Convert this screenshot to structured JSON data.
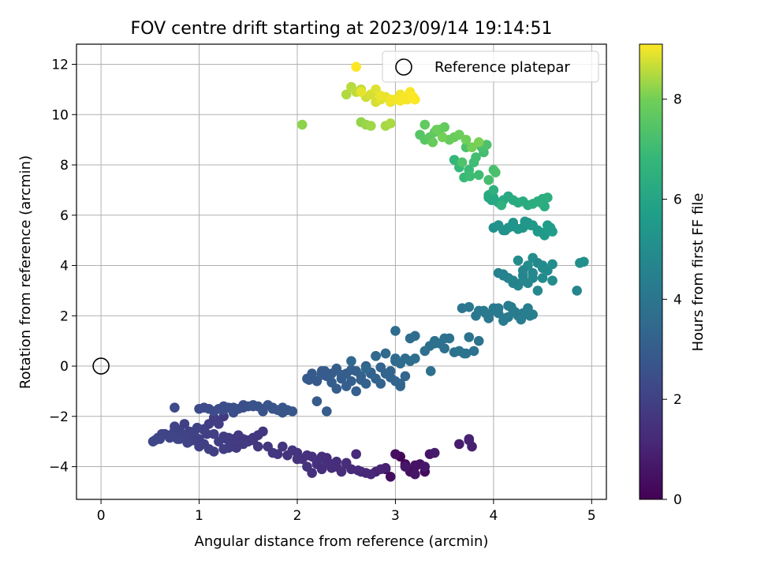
{
  "chart_data": {
    "type": "scatter",
    "title": "FOV centre drift starting at 2023/09/14 19:14:51",
    "xlabel": "Angular distance from reference (arcmin)",
    "ylabel": "Rotation from reference (arcmin)",
    "xlim": [
      -0.25,
      5.15
    ],
    "ylim": [
      -5.3,
      12.8
    ],
    "xticks": [
      0,
      1,
      2,
      3,
      4,
      5
    ],
    "yticks": [
      -4,
      -2,
      0,
      2,
      4,
      6,
      8,
      10,
      12
    ],
    "grid": true,
    "legend": {
      "placement": "top-right",
      "entries": [
        "Reference platepar"
      ]
    },
    "reference_point": {
      "x": 0,
      "y": 0
    },
    "colorbar": {
      "label": "Hours from first FF file",
      "range": [
        0,
        9.1
      ],
      "ticks": [
        0,
        2,
        4,
        6,
        8
      ],
      "colormap": "viridis"
    },
    "series": [
      {
        "x": [
          3.05,
          3.1,
          3.2,
          3.3,
          2.9,
          2.95,
          3.15,
          3.0,
          3.25,
          3.35,
          3.2,
          3.1,
          3.3,
          3.4,
          3.65,
          3.75,
          3.78,
          3.75,
          2.8,
          2.85,
          2.7,
          2.65,
          2.75,
          2.9,
          3.2
        ],
        "y": [
          -3.6,
          -3.9,
          -4.0,
          -4.2,
          -4.1,
          -4.4,
          -4.2,
          -3.5,
          -3.9,
          -3.5,
          -4.3,
          -4.0,
          -4.0,
          -3.45,
          -3.1,
          -2.95,
          -3.2,
          -2.9,
          -4.2,
          -4.1,
          -4.25,
          -4.2,
          -4.3,
          -4.05,
          -3.95
        ],
        "t": [
          0.1,
          0.15,
          0.2,
          0.25,
          0.3,
          0.35,
          0.4,
          0.45,
          0.5,
          0.55,
          0.6,
          0.65,
          0.7,
          0.75,
          0.8,
          0.85,
          0.9,
          0.95,
          1.0,
          1.05,
          1.1,
          1.1,
          1.15,
          0.95,
          0.5
        ]
      },
      {
        "x": [
          2.6,
          2.5,
          2.4,
          2.45,
          2.35,
          2.3,
          2.25,
          2.2,
          2.15,
          2.1,
          2.05,
          2.0,
          2.3,
          2.4,
          2.55,
          2.62,
          2.2,
          2.15,
          2.25,
          1.85,
          1.9,
          2.0,
          1.8,
          1.75,
          1.95,
          2.1,
          2.5,
          2.35
        ],
        "y": [
          -3.5,
          -3.9,
          -4.0,
          -4.2,
          -3.9,
          -3.85,
          -3.6,
          -3.8,
          -3.6,
          -4.0,
          -3.7,
          -3.45,
          -3.65,
          -3.8,
          -4.1,
          -4.15,
          -3.9,
          -4.25,
          -4.1,
          -3.2,
          -3.55,
          -3.7,
          -3.5,
          -3.45,
          -3.35,
          -3.55,
          -3.85,
          -4.05
        ],
        "t": [
          1.2,
          1.25,
          1.3,
          1.3,
          1.35,
          1.4,
          1.4,
          1.45,
          1.5,
          1.5,
          1.5,
          1.55,
          1.3,
          1.35,
          1.25,
          1.25,
          1.45,
          1.4,
          1.35,
          1.6,
          1.55,
          1.5,
          1.6,
          1.65,
          1.55,
          1.45,
          1.3,
          1.35
        ]
      },
      {
        "x": [
          1.7,
          1.6,
          1.5,
          1.45,
          1.4,
          1.35,
          1.3,
          1.25,
          1.2,
          1.15,
          1.1,
          1.05,
          1.0,
          0.95,
          0.9,
          0.85,
          0.8,
          0.75,
          0.7,
          0.65,
          0.6,
          0.55,
          0.53,
          0.58,
          0.62,
          0.7,
          0.75,
          0.8,
          0.85,
          0.9,
          0.95,
          1.0,
          1.05,
          1.1,
          1.15,
          1.2,
          1.25,
          1.3,
          1.35,
          1.4,
          1.45,
          1.5,
          1.55,
          1.6,
          1.65,
          1.55,
          1.45,
          1.35,
          1.25,
          1.15,
          1.05,
          0.95,
          0.85,
          0.78,
          0.88,
          0.98,
          1.08,
          1.18,
          1.28,
          1.38
        ],
        "y": [
          -3.2,
          -3.2,
          -3.0,
          -2.9,
          -2.75,
          -3.1,
          -3.25,
          -2.8,
          -3.0,
          -3.4,
          -3.3,
          -3.1,
          -3.2,
          -2.95,
          -3.0,
          -2.75,
          -2.9,
          -2.55,
          -2.85,
          -2.7,
          -2.9,
          -2.95,
          -3.0,
          -2.85,
          -2.7,
          -2.75,
          -2.4,
          -2.55,
          -2.3,
          -2.6,
          -2.8,
          -2.9,
          -2.5,
          -2.3,
          -2.05,
          -2.3,
          -2.0,
          -2.85,
          -2.9,
          -2.85,
          -3.0,
          -2.95,
          -2.85,
          -2.75,
          -2.6,
          -2.95,
          -3.1,
          -3.2,
          -3.3,
          -2.7,
          -2.55,
          -2.6,
          -2.75,
          -2.9,
          -3.05,
          -2.45,
          -2.7,
          -2.2,
          -2.9,
          -3.25
        ],
        "t": [
          1.65,
          1.7,
          1.75,
          1.75,
          1.8,
          1.8,
          1.85,
          1.85,
          1.9,
          1.9,
          1.95,
          1.95,
          2.0,
          2.0,
          2.05,
          2.05,
          2.05,
          2.1,
          2.1,
          2.1,
          2.15,
          2.15,
          2.2,
          2.2,
          2.15,
          2.1,
          2.1,
          2.05,
          2.0,
          2.0,
          1.95,
          1.95,
          1.9,
          1.9,
          1.85,
          1.85,
          1.8,
          1.8,
          1.75,
          1.75,
          1.7,
          1.7,
          1.65,
          1.65,
          1.6,
          1.7,
          1.8,
          1.85,
          1.9,
          1.95,
          2.0,
          2.05,
          2.1,
          2.15,
          2.1,
          2.05,
          1.95,
          1.9,
          1.85,
          1.8
        ]
      },
      {
        "x": [
          0.75,
          1.0,
          1.05,
          1.1,
          1.2,
          1.25,
          1.3,
          1.35,
          1.4,
          1.45,
          1.5,
          1.55,
          1.6,
          1.65,
          1.7,
          1.75,
          1.8,
          1.85,
          1.9,
          1.15,
          1.25,
          1.35,
          1.45,
          1.55,
          1.65,
          1.75,
          1.85,
          1.95
        ],
        "y": [
          -1.65,
          -1.7,
          -1.65,
          -1.7,
          -1.7,
          -1.6,
          -1.65,
          -1.65,
          -1.7,
          -1.55,
          -1.6,
          -1.55,
          -1.6,
          -1.7,
          -1.55,
          -1.65,
          -1.75,
          -1.65,
          -1.75,
          -1.8,
          -1.75,
          -1.85,
          -1.65,
          -1.6,
          -1.8,
          -1.7,
          -1.85,
          -1.8
        ],
        "t": [
          2.3,
          2.35,
          2.4,
          2.4,
          2.45,
          2.45,
          2.5,
          2.5,
          2.55,
          2.55,
          2.6,
          2.6,
          2.65,
          2.65,
          2.7,
          2.7,
          2.75,
          2.75,
          2.8,
          2.4,
          2.45,
          2.5,
          2.55,
          2.6,
          2.65,
          2.7,
          2.75,
          2.8
        ]
      },
      {
        "x": [
          2.1,
          2.15,
          2.2,
          2.25,
          2.3,
          2.35,
          2.4,
          2.45,
          2.5,
          2.55,
          2.6,
          2.65,
          2.7,
          2.75,
          2.8,
          2.85,
          2.9,
          2.95,
          3.0,
          3.05,
          3.1,
          2.2,
          2.3,
          2.4,
          2.5,
          2.6,
          2.7,
          2.8,
          2.9,
          3.0,
          2.15,
          2.28,
          2.35,
          2.45,
          2.55,
          2.65,
          2.75,
          2.85,
          2.95,
          3.05,
          2.12,
          2.25
        ],
        "y": [
          -0.5,
          -0.3,
          -0.6,
          -0.2,
          -0.4,
          -0.3,
          -0.1,
          -0.5,
          -0.3,
          -0.6,
          -0.2,
          -0.4,
          0.0,
          -0.3,
          -0.5,
          -0.7,
          0.5,
          -0.2,
          -0.6,
          -0.8,
          -0.4,
          -1.4,
          -1.8,
          -0.9,
          -0.8,
          -1.0,
          -0.7,
          0.4,
          -0.3,
          0.2,
          -0.45,
          -0.2,
          -0.65,
          -0.35,
          -0.15,
          -0.55,
          -0.25,
          -0.05,
          -0.45,
          -0.7,
          -0.55,
          -0.35
        ],
        "t": [
          2.85,
          2.9,
          2.9,
          2.95,
          2.95,
          3.0,
          3.0,
          3.05,
          3.05,
          3.1,
          3.1,
          3.15,
          3.15,
          3.2,
          3.2,
          3.25,
          3.25,
          3.3,
          3.3,
          3.35,
          3.35,
          2.95,
          3.0,
          3.05,
          3.1,
          3.15,
          3.2,
          3.25,
          3.3,
          3.35,
          2.9,
          2.95,
          3.0,
          3.05,
          3.1,
          3.15,
          3.2,
          3.25,
          3.3,
          3.35,
          2.9,
          2.95
        ]
      },
      {
        "x": [
          2.55,
          2.7,
          2.8,
          2.9,
          3.0,
          3.05,
          3.1,
          3.15,
          3.2,
          3.35,
          3.4,
          3.45,
          3.5,
          3.55,
          3.6,
          3.7,
          3.8,
          3.85,
          3.75,
          3.0,
          3.15,
          3.2,
          3.3,
          3.4,
          3.5,
          3.65,
          3.72,
          3.36
        ],
        "y": [
          0.2,
          -0.1,
          0.4,
          0.5,
          0.3,
          0.1,
          0.3,
          1.1,
          1.2,
          0.8,
          1.0,
          0.9,
          0.7,
          1.1,
          0.55,
          0.5,
          0.6,
          1.0,
          1.15,
          1.4,
          0.2,
          0.3,
          0.6,
          0.9,
          1.1,
          0.6,
          0.5,
          -0.2
        ],
        "t": [
          3.4,
          3.45,
          3.5,
          3.55,
          3.55,
          3.6,
          3.6,
          3.65,
          3.65,
          3.7,
          3.7,
          3.75,
          3.75,
          3.8,
          3.8,
          3.85,
          3.85,
          3.9,
          3.9,
          3.6,
          3.65,
          3.7,
          3.75,
          3.8,
          3.85,
          3.9,
          3.95,
          3.75
        ]
      },
      {
        "x": [
          3.68,
          3.75,
          3.82,
          3.9,
          3.95,
          4.0,
          4.05,
          4.1,
          4.15,
          4.2,
          4.25,
          4.3,
          4.35,
          4.4,
          3.85,
          3.95,
          4.05,
          4.15,
          4.22,
          4.28,
          4.37,
          3.92,
          4.02,
          4.12,
          4.18
        ],
        "y": [
          2.3,
          2.35,
          2.0,
          2.2,
          1.9,
          2.3,
          2.1,
          1.8,
          2.4,
          2.2,
          2.0,
          2.1,
          2.3,
          2.05,
          2.2,
          2.05,
          2.3,
          1.95,
          2.15,
          1.85,
          2.0,
          2.1,
          2.25,
          1.9,
          2.35
        ],
        "t": [
          4.0,
          4.05,
          4.1,
          4.15,
          4.15,
          4.2,
          4.2,
          4.25,
          4.25,
          4.3,
          4.3,
          4.35,
          4.35,
          4.4,
          4.1,
          4.15,
          4.2,
          4.25,
          4.3,
          4.35,
          4.4,
          4.15,
          4.2,
          4.25,
          4.3
        ]
      },
      {
        "x": [
          4.05,
          4.1,
          4.15,
          4.2,
          4.25,
          4.3,
          4.35,
          4.4,
          4.45,
          4.5,
          4.55,
          4.6,
          4.4,
          4.35,
          4.25,
          4.2,
          4.15,
          4.3,
          4.45,
          4.5,
          4.55,
          4.6,
          4.85,
          4.88,
          4.92,
          4.4,
          4.5,
          4.3,
          4.1
        ],
        "y": [
          3.7,
          3.6,
          3.5,
          3.4,
          3.2,
          3.6,
          3.3,
          3.7,
          3.0,
          3.5,
          3.8,
          3.4,
          4.3,
          4.0,
          4.2,
          3.3,
          3.5,
          3.8,
          4.1,
          4.0,
          3.8,
          4.05,
          3.0,
          4.1,
          4.15,
          3.5,
          3.9,
          3.4,
          3.65
        ],
        "t": [
          4.5,
          4.55,
          4.6,
          4.65,
          4.7,
          4.7,
          4.75,
          4.8,
          4.85,
          4.9,
          4.9,
          4.95,
          5.0,
          5.0,
          4.95,
          4.6,
          4.65,
          4.75,
          4.85,
          4.9,
          4.95,
          5.0,
          4.7,
          5.05,
          5.1,
          4.8,
          4.9,
          4.7,
          4.55
        ]
      },
      {
        "x": [
          4.0,
          4.05,
          4.1,
          4.15,
          4.2,
          4.25,
          4.3,
          4.35,
          4.4,
          4.45,
          4.5,
          4.55,
          4.6,
          4.58,
          4.52,
          4.45,
          4.38,
          4.32,
          4.25,
          4.18,
          4.12,
          4.05,
          3.95,
          3.98
        ],
        "y": [
          5.5,
          5.6,
          5.4,
          5.5,
          5.7,
          5.45,
          5.5,
          5.7,
          5.6,
          5.4,
          5.3,
          5.6,
          5.35,
          5.5,
          5.2,
          5.35,
          5.6,
          5.75,
          5.45,
          5.55,
          5.4,
          5.6,
          6.7,
          6.6
        ],
        "t": [
          5.1,
          5.15,
          5.2,
          5.25,
          5.3,
          5.35,
          5.4,
          5.45,
          5.5,
          5.55,
          5.6,
          5.65,
          5.7,
          5.6,
          5.55,
          5.5,
          5.45,
          5.4,
          5.35,
          5.3,
          5.25,
          5.2,
          6.0,
          6.05
        ]
      },
      {
        "x": [
          4.0,
          4.05,
          4.1,
          4.15,
          4.2,
          4.25,
          4.3,
          4.35,
          4.4,
          4.45,
          4.5,
          4.55,
          4.52,
          4.48,
          3.95,
          4.0,
          4.08
        ],
        "y": [
          6.7,
          6.5,
          6.6,
          6.75,
          6.6,
          6.5,
          6.55,
          6.4,
          6.45,
          6.55,
          6.65,
          6.7,
          6.35,
          6.5,
          6.8,
          7.0,
          6.4
        ],
        "t": [
          6.1,
          6.15,
          6.2,
          6.2,
          6.25,
          6.25,
          6.3,
          6.3,
          6.35,
          6.35,
          6.4,
          6.4,
          6.3,
          6.35,
          6.2,
          6.5,
          6.55
        ]
      },
      {
        "x": [
          3.6,
          3.65,
          3.7,
          3.75,
          3.8,
          3.85,
          3.9,
          3.95,
          4.0,
          4.02,
          3.72,
          3.68,
          3.76,
          3.82,
          3.88,
          3.93
        ],
        "y": [
          8.2,
          7.9,
          7.5,
          7.8,
          8.1,
          7.6,
          8.5,
          7.4,
          7.8,
          7.7,
          8.7,
          8.1,
          7.55,
          8.3,
          8.7,
          8.8
        ],
        "t": [
          6.8,
          6.85,
          6.9,
          6.95,
          7.0,
          7.05,
          7.1,
          7.15,
          7.2,
          7.25,
          7.3,
          7.35,
          7.0,
          7.1,
          7.2,
          7.3
        ]
      },
      {
        "x": [
          3.25,
          3.3,
          3.35,
          3.4,
          3.45,
          3.5,
          3.55,
          3.6,
          3.65,
          3.72,
          3.78,
          3.85,
          3.3,
          3.38,
          3.42,
          3.48
        ],
        "y": [
          9.2,
          9.0,
          9.1,
          9.3,
          9.4,
          9.5,
          9.0,
          9.1,
          9.2,
          9.0,
          8.7,
          8.9,
          9.6,
          8.9,
          9.4,
          9.1
        ],
        "t": [
          7.5,
          7.55,
          7.6,
          7.65,
          7.7,
          7.75,
          7.8,
          7.85,
          7.9,
          7.95,
          8.0,
          8.05,
          7.7,
          7.8,
          7.9,
          8.0
        ]
      },
      {
        "x": [
          2.05,
          2.65,
          2.7,
          2.75,
          2.9,
          2.95,
          2.5,
          2.55,
          2.6,
          2.65,
          2.7,
          2.75,
          2.8,
          2.85,
          2.9,
          2.95,
          3.0,
          3.05,
          3.1,
          3.15,
          3.2,
          2.6,
          2.65,
          2.75,
          2.8,
          2.85,
          2.95,
          3.05,
          3.12,
          3.18
        ],
        "y": [
          9.6,
          9.7,
          9.6,
          9.55,
          9.55,
          9.65,
          10.8,
          11.1,
          10.9,
          11.0,
          10.7,
          10.8,
          10.5,
          10.6,
          10.7,
          10.5,
          10.6,
          10.8,
          10.7,
          10.9,
          10.6,
          11.9,
          10.9,
          10.8,
          11.0,
          10.75,
          10.6,
          10.55,
          10.6,
          10.7
        ],
        "t": [
          8.2,
          8.25,
          8.3,
          8.35,
          8.4,
          8.45,
          8.5,
          8.55,
          8.6,
          8.65,
          8.7,
          8.75,
          8.8,
          8.85,
          8.9,
          8.95,
          9.0,
          9.0,
          9.05,
          9.05,
          9.1,
          9.1,
          8.9,
          8.8,
          8.85,
          8.95,
          9.0,
          9.05,
          9.05,
          9.1
        ]
      }
    ]
  }
}
